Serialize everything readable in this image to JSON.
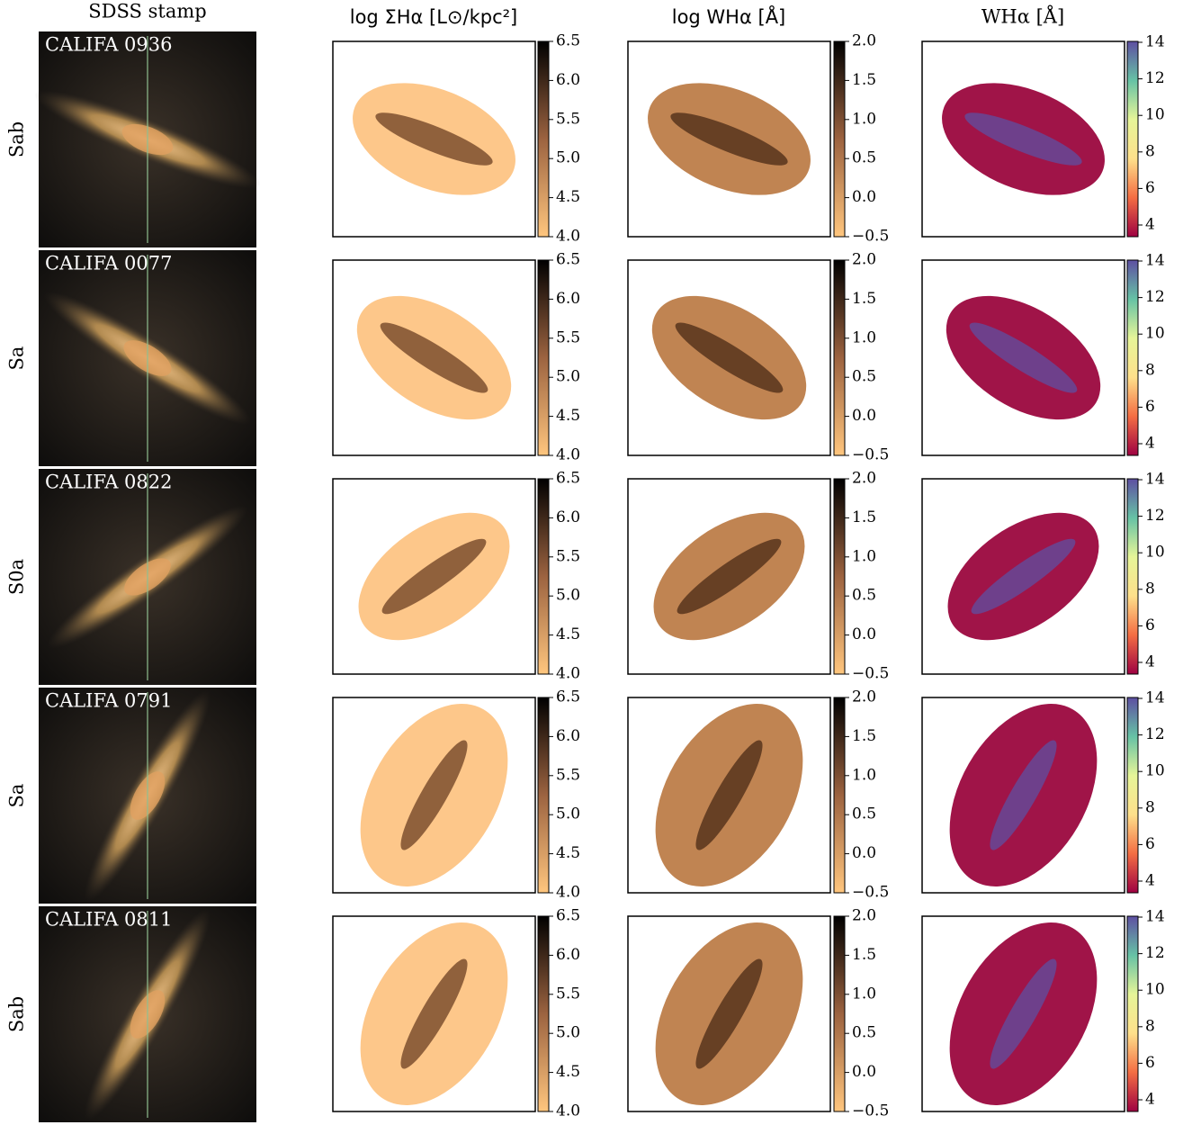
{
  "figure": {
    "stamp_header": "SDSS stamp",
    "column_headers": [
      "log ΣHα [L⊙/kpc²]",
      "log WHα [Å]",
      "WHα [Å]"
    ],
    "rows": [
      {
        "type": "Sab",
        "name": "CALIFA 0936"
      },
      {
        "type": "Sa",
        "name": "CALIFA 0077"
      },
      {
        "type": "S0a",
        "name": "CALIFA 0822"
      },
      {
        "type": "Sa",
        "name": "CALIFA 0791"
      },
      {
        "type": "Sab",
        "name": "CALIFA 0811"
      }
    ],
    "colorbars": [
      {
        "cmap": "copper_r",
        "lim": [
          4.0,
          6.5
        ],
        "ticks": [
          {
            "value": 4.0,
            "label": "4.0"
          },
          4.5,
          {
            "value": 5.0,
            "label": "5.0"
          },
          5.5,
          {
            "value": 6.0,
            "label": "6.0"
          },
          6.5
        ]
      },
      {
        "cmap": "copper_r",
        "lim": [
          -0.5,
          2.0
        ],
        "ticks": [
          {
            "value": -0.5,
            "label": "−0.5"
          },
          {
            "value": 0.0,
            "label": "0.0"
          },
          0.5,
          {
            "value": 1.0,
            "label": "1.0"
          },
          1.5,
          {
            "value": 2.0,
            "label": "2.0"
          }
        ]
      },
      {
        "cmap": "Spectral",
        "lim": [
          3.36,
          14.05
        ],
        "ticks": [
          4,
          6,
          8,
          10,
          12,
          14
        ]
      }
    ]
  }
}
